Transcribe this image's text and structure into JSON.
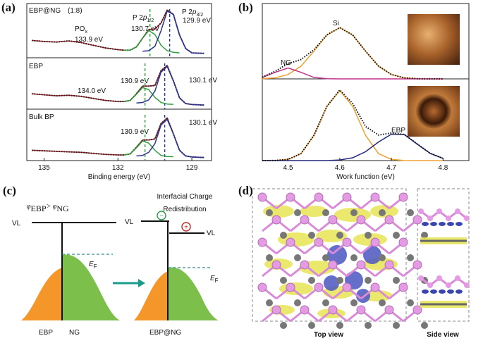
{
  "panel_labels": [
    "(a)",
    "(b)",
    "(c)",
    "(d)"
  ],
  "chart_data": [
    {
      "type": "line",
      "sample": "EBP@NG",
      "ratio": "(1:8)",
      "annotations": {
        "pox": [
          "PO",
          "x"
        ],
        "pox_energy": "133.9 eV",
        "p12": [
          "P 2",
          "p",
          "1/2"
        ],
        "p12_energy": "130.7 eV",
        "p32": [
          "P 2",
          "p",
          "3/2"
        ],
        "p32_energy": "129.9 eV"
      },
      "x": [
        135.5,
        135,
        134.5,
        134,
        133.5,
        133,
        132.5,
        132,
        131.75,
        131.5,
        131.25,
        131,
        130.75,
        130.5,
        130.25,
        130,
        129.75,
        129.5,
        129.25,
        129,
        128.75,
        128.5
      ],
      "xlim": [
        135.7,
        128.2
      ],
      "ylim": [
        0,
        1
      ],
      "series": [
        {
          "color": "#b0202a",
          "dotted": true,
          "values": [
            0.32,
            0.3,
            0.29,
            0.31,
            0.28,
            0.23,
            0.18,
            0.15,
            0.14,
            0.14,
            0.2,
            0.36,
            0.52,
            0.53,
            0.64,
            0.88,
            0.8,
            0.42,
            0.17,
            0.09,
            0.085,
            0.08
          ]
        },
        {
          "color": "#2e9e3a",
          "values": [
            null,
            null,
            null,
            null,
            null,
            null,
            null,
            null,
            0.14,
            0.14,
            0.2,
            0.36,
            0.5,
            0.43,
            0.23,
            0.13,
            0.1,
            0.09,
            null,
            null,
            null,
            null
          ]
        },
        {
          "color": "#2a3590",
          "values": [
            null,
            null,
            null,
            null,
            null,
            null,
            null,
            null,
            null,
            null,
            null,
            0.12,
            0.13,
            0.21,
            0.5,
            0.86,
            0.8,
            0.42,
            0.17,
            0.09,
            0.085,
            0.08
          ]
        }
      ],
      "peak_lines": [
        {
          "x": 130.7,
          "color": "#2e9e3a"
        },
        {
          "x": 129.9,
          "color": "#2a3590"
        }
      ]
    },
    {
      "type": "line",
      "sample": "EBP",
      "annotations": {
        "pox_energy": "134.0 eV",
        "p12_energy": "130.9 eV",
        "p32_energy": "130.1 eV"
      },
      "x": [
        135.5,
        135,
        134.5,
        134,
        133.5,
        133,
        132.5,
        132,
        131.75,
        131.5,
        131.25,
        131,
        130.75,
        130.5,
        130.25,
        130,
        129.75,
        129.5,
        129.25,
        129,
        128.75,
        128.5
      ],
      "xlim": [
        135.7,
        128.2
      ],
      "ylim": [
        0,
        1
      ],
      "series": [
        {
          "color": "#b0202a",
          "dotted": true,
          "values": [
            0.3,
            0.28,
            0.26,
            0.27,
            0.25,
            0.21,
            0.17,
            0.15,
            0.15,
            0.17,
            0.3,
            0.45,
            0.45,
            0.46,
            0.75,
            0.85,
            0.55,
            0.22,
            0.11,
            0.09,
            0.085,
            0.08
          ]
        },
        {
          "color": "#2e9e3a",
          "values": [
            null,
            null,
            null,
            null,
            null,
            null,
            null,
            null,
            0.15,
            0.17,
            0.29,
            0.42,
            0.38,
            0.23,
            0.13,
            0.1,
            0.095,
            null,
            null,
            null,
            null,
            null
          ]
        },
        {
          "color": "#2a3590",
          "values": [
            null,
            null,
            null,
            null,
            null,
            null,
            null,
            null,
            null,
            null,
            0.12,
            0.13,
            0.18,
            0.35,
            0.72,
            0.83,
            0.55,
            0.22,
            0.11,
            0.09,
            0.085,
            0.08
          ]
        }
      ],
      "peak_lines": [
        {
          "x": 130.9,
          "color": "#2e9e3a"
        },
        {
          "x": 130.1,
          "color": "#2a3590"
        }
      ]
    },
    {
      "type": "line",
      "sample": "Bulk BP",
      "annotations": {
        "p12_energy": "130.9 eV",
        "p32_energy": "130.1 eV"
      },
      "x": [
        135.5,
        135,
        134.5,
        134,
        133.5,
        133,
        132.5,
        132,
        131.75,
        131.5,
        131.25,
        131,
        130.75,
        130.5,
        130.25,
        130,
        129.75,
        129.5,
        129.25,
        129,
        128.75,
        128.5
      ],
      "xlim": [
        135.7,
        128.2
      ],
      "ylim": [
        0,
        1
      ],
      "xticks": [
        135,
        132,
        129
      ],
      "xlabel": "Binding energy (eV)",
      "series": [
        {
          "color": "#b0202a",
          "dotted": true,
          "values": [
            0.2,
            0.19,
            0.18,
            0.17,
            0.16,
            0.14,
            0.12,
            0.11,
            0.11,
            0.13,
            0.26,
            0.4,
            0.4,
            0.42,
            0.72,
            0.83,
            0.52,
            0.2,
            0.09,
            0.07,
            0.065,
            0.06
          ]
        },
        {
          "color": "#2e9e3a",
          "values": [
            null,
            null,
            null,
            null,
            null,
            null,
            null,
            null,
            0.11,
            0.13,
            0.25,
            0.38,
            0.34,
            0.2,
            0.1,
            0.08,
            0.075,
            null,
            null,
            null,
            null,
            null
          ]
        },
        {
          "color": "#2a3590",
          "values": [
            null,
            null,
            null,
            null,
            null,
            null,
            null,
            null,
            null,
            null,
            0.09,
            0.1,
            0.16,
            0.33,
            0.69,
            0.8,
            0.52,
            0.2,
            0.09,
            0.07,
            0.065,
            0.06
          ]
        }
      ],
      "peak_lines": [
        {
          "x": 130.9,
          "color": "#2e9e3a"
        },
        {
          "x": 130.1,
          "color": "#2a3590"
        }
      ]
    },
    {
      "type": "line",
      "labels": {
        "si": "Si",
        "ng": "NG"
      },
      "x": [
        4.45,
        4.475,
        4.5,
        4.525,
        4.55,
        4.575,
        4.6,
        4.625,
        4.65,
        4.675,
        4.7,
        4.725,
        4.75,
        4.775,
        4.8
      ],
      "xlim": [
        4.45,
        4.85
      ],
      "ylim": [
        0,
        1.25
      ],
      "series": [
        {
          "color": "#f0a030",
          "values": [
            0.003,
            0.018,
            0.072,
            0.212,
            0.459,
            0.728,
            0.85,
            0.728,
            0.459,
            0.212,
            0.072,
            0.018,
            0.003,
            0,
            0
          ]
        },
        {
          "color": "#c0308a",
          "values": [
            0.024,
            0.109,
            0.18,
            0.109,
            0.024,
            0.002,
            0,
            0,
            0,
            0,
            0,
            0,
            0,
            0,
            0
          ]
        },
        {
          "color": "#111111",
          "dotted": true,
          "values": [
            0.027,
            0.127,
            0.252,
            0.321,
            0.483,
            0.73,
            0.85,
            0.728,
            0.459,
            0.212,
            0.072,
            0.018,
            0.003,
            0,
            0
          ]
        }
      ]
    },
    {
      "type": "line",
      "labels": {
        "ebp": "EBP"
      },
      "x": [
        4.45,
        4.475,
        4.5,
        4.525,
        4.55,
        4.575,
        4.6,
        4.625,
        4.65,
        4.675,
        4.7,
        4.725,
        4.75,
        4.775,
        4.8
      ],
      "xlim": [
        4.45,
        4.85
      ],
      "ylim": [
        0,
        1.05
      ],
      "xticks": [
        4.5,
        4.6,
        4.7,
        4.8
      ],
      "xlabel": "Work function (eV)",
      "series": [
        {
          "color": "#f0a030",
          "values": [
            0,
            0.001,
            0.015,
            0.09,
            0.324,
            0.697,
            0.9,
            0.697,
            0.324,
            0.09,
            0.015,
            0.001,
            0,
            0,
            0
          ]
        },
        {
          "color": "#22287a",
          "values": [
            0,
            0,
            0,
            0,
            0,
            0,
            0.008,
            0.036,
            0.114,
            0.239,
            0.339,
            0.335,
            0.212,
            0.093,
            0.028
          ]
        },
        {
          "color": "#111111",
          "dotted": true,
          "values": [
            0,
            0.001,
            0.015,
            0.09,
            0.324,
            0.697,
            0.908,
            0.733,
            0.438,
            0.329,
            0.354,
            0.336,
            0.212,
            0.093,
            0.028
          ]
        }
      ]
    }
  ],
  "diagram_c": {
    "condition": [
      "φ",
      "EBP",
      "> φ",
      "NG"
    ],
    "redistribution": [
      "Interfacial Charge",
      "Redistribution"
    ],
    "vl": [
      "VL",
      "VL",
      "VL"
    ],
    "ef": [
      [
        "E",
        "F"
      ],
      [
        "E",
        "F"
      ]
    ],
    "signs": [
      "−",
      "+"
    ],
    "left_labels": [
      "EBP",
      "NG"
    ],
    "right_label": "EBP@NG"
  },
  "diagram_d": {
    "top_view": "Top view",
    "side_view": "Side view"
  }
}
